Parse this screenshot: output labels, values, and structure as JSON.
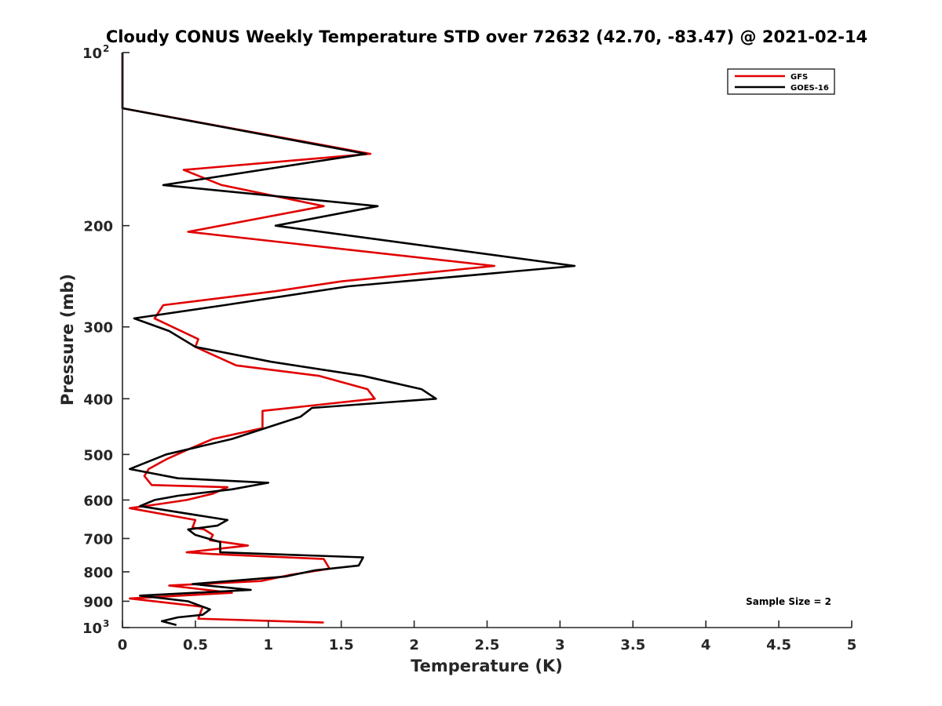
{
  "chart_data": {
    "type": "line",
    "title": "Cloudy CONUS Weekly Temperature STD over 72632 (42.70, -83.47) @ 2021-02-14",
    "xlabel": "Temperature (K)",
    "ylabel": "Pressure (mb)",
    "xlim": [
      0,
      5
    ],
    "ylim": [
      100,
      1000
    ],
    "yscale": "log",
    "yreversed": true,
    "x_ticks": [
      "0",
      "0.5",
      "1",
      "1.5",
      "2",
      "2.5",
      "3",
      "3.5",
      "4",
      "4.5",
      "5"
    ],
    "y_ticks": [
      {
        "value": 100,
        "base": "10",
        "exp": "2"
      },
      {
        "value": 200,
        "label": "200"
      },
      {
        "value": 300,
        "label": "300"
      },
      {
        "value": 400,
        "label": "400"
      },
      {
        "value": 500,
        "label": "500"
      },
      {
        "value": 600,
        "label": "600"
      },
      {
        "value": 700,
        "label": "700"
      },
      {
        "value": 800,
        "label": "800"
      },
      {
        "value": 900,
        "label": "900"
      },
      {
        "value": 1000,
        "base": "10",
        "exp": "3"
      }
    ],
    "legend": {
      "position": "top-right"
    },
    "annotation": "Sample Size = 2",
    "grid": false,
    "series": [
      {
        "name": "GFS",
        "color": "#e00000",
        "points": [
          [
            0,
            100
          ],
          [
            0,
            125
          ],
          [
            1.7,
            150
          ],
          [
            0.42,
            160
          ],
          [
            0.68,
            170
          ],
          [
            1.38,
            185
          ],
          [
            0.45,
            205
          ],
          [
            2.55,
            235
          ],
          [
            1.5,
            250
          ],
          [
            1.05,
            260
          ],
          [
            0.28,
            275
          ],
          [
            0.22,
            290
          ],
          [
            0.52,
            315
          ],
          [
            0.5,
            325
          ],
          [
            0.78,
            350
          ],
          [
            1.35,
            365
          ],
          [
            1.68,
            385
          ],
          [
            1.73,
            400
          ],
          [
            0.96,
            420
          ],
          [
            0.96,
            450
          ],
          [
            0.62,
            470
          ],
          [
            0.45,
            490
          ],
          [
            0.3,
            510
          ],
          [
            0.18,
            530
          ],
          [
            0.15,
            545
          ],
          [
            0.2,
            565
          ],
          [
            0.72,
            570
          ],
          [
            0.62,
            585
          ],
          [
            0.44,
            600
          ],
          [
            0.25,
            610
          ],
          [
            0.05,
            620
          ],
          [
            0.5,
            650
          ],
          [
            0.48,
            670
          ],
          [
            0.56,
            675
          ],
          [
            0.62,
            690
          ],
          [
            0.6,
            705
          ],
          [
            0.86,
            720
          ],
          [
            0.44,
            740
          ],
          [
            0.62,
            745
          ],
          [
            1.38,
            760
          ],
          [
            1.42,
            790
          ],
          [
            1.15,
            810
          ],
          [
            0.95,
            830
          ],
          [
            0.32,
            845
          ],
          [
            0.75,
            870
          ],
          [
            0.05,
            890
          ],
          [
            0.55,
            920
          ],
          [
            0.52,
            965
          ],
          [
            1.38,
            980
          ]
        ]
      },
      {
        "name": "GOES-16",
        "color": "#000000",
        "points": [
          [
            0,
            100
          ],
          [
            0,
            125
          ],
          [
            1.67,
            150
          ],
          [
            0.28,
            170
          ],
          [
            1.75,
            185
          ],
          [
            1.05,
            200
          ],
          [
            3.1,
            235
          ],
          [
            1.55,
            255
          ],
          [
            0.7,
            275
          ],
          [
            0.08,
            290
          ],
          [
            0.32,
            305
          ],
          [
            0.5,
            325
          ],
          [
            1.02,
            345
          ],
          [
            1.65,
            365
          ],
          [
            2.05,
            385
          ],
          [
            2.15,
            400
          ],
          [
            1.3,
            415
          ],
          [
            1.22,
            430
          ],
          [
            0.75,
            470
          ],
          [
            0.3,
            500
          ],
          [
            0.05,
            530
          ],
          [
            0.38,
            550
          ],
          [
            1.0,
            560
          ],
          [
            0.75,
            575
          ],
          [
            0.38,
            590
          ],
          [
            0.22,
            600
          ],
          [
            0.12,
            615
          ],
          [
            0.72,
            650
          ],
          [
            0.65,
            665
          ],
          [
            0.45,
            675
          ],
          [
            0.5,
            690
          ],
          [
            0.67,
            710
          ],
          [
            0.67,
            740
          ],
          [
            1.65,
            755
          ],
          [
            1.62,
            780
          ],
          [
            1.32,
            795
          ],
          [
            1.12,
            815
          ],
          [
            0.48,
            840
          ],
          [
            0.88,
            860
          ],
          [
            0.12,
            880
          ],
          [
            0.45,
            900
          ],
          [
            0.6,
            930
          ],
          [
            0.55,
            950
          ],
          [
            0.38,
            960
          ],
          [
            0.27,
            975
          ],
          [
            0.37,
            990
          ]
        ]
      }
    ]
  }
}
